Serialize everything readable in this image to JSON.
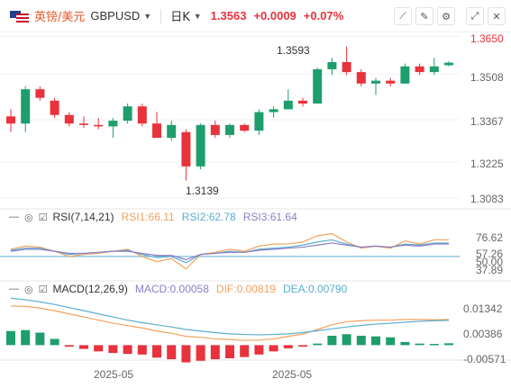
{
  "header": {
    "cn_name": "英镑/美元",
    "symbol": "GBPUSD",
    "period": "日K",
    "price": "1.3563",
    "change": "+0.0009",
    "change_pct": "+0.07%"
  },
  "colors": {
    "up": "#1e9e6c",
    "down": "#e8323c",
    "rsi1": "#f0a35e",
    "rsi2": "#5aaed0",
    "rsi3": "#8e7cc3",
    "dif": "#f0a35e",
    "dea": "#5aaed0"
  },
  "icons": [
    "flag-gbp-usd-icon",
    "chevron-down-icon",
    "line-tool-icon",
    "pencil-icon",
    "settings-icon",
    "expand-icon",
    "close-icon"
  ],
  "main_axis": {
    "labels": [
      "1.3650",
      "1.3508",
      "1.3367",
      "1.3225",
      "1.3083"
    ],
    "current": "1.3650"
  },
  "annotations": {
    "high": "1.3593",
    "low": "1.3139"
  },
  "rsi": {
    "name": "RSI(7,14,21)",
    "rsi1": "RSI1:66.11",
    "rsi2": "RSI2:62.78",
    "rsi3": "RSI3:61.64",
    "axis": [
      "76.62",
      "57.26",
      "50.00",
      "37.89"
    ]
  },
  "macd": {
    "name": "MACD(12,26,9)",
    "macd": "MACD:0.00058",
    "dif": "DIF:0.00819",
    "dea": "DEA:0.00790",
    "axis": [
      "0.01342",
      "0.00386",
      "-0.00571"
    ]
  },
  "x_labels": [
    "2025-05",
    "2025-05"
  ],
  "chart_data": {
    "type": "candlestick",
    "ylim": [
      1.3083,
      1.365
    ],
    "candles": [
      {
        "o": 1.3375,
        "h": 1.34,
        "l": 1.332,
        "c": 1.335
      },
      {
        "o": 1.335,
        "h": 1.348,
        "l": 1.332,
        "c": 1.347
      },
      {
        "o": 1.347,
        "h": 1.348,
        "l": 1.343,
        "c": 1.344
      },
      {
        "o": 1.343,
        "h": 1.344,
        "l": 1.337,
        "c": 1.338
      },
      {
        "o": 1.338,
        "h": 1.339,
        "l": 1.334,
        "c": 1.335
      },
      {
        "o": 1.335,
        "h": 1.3375,
        "l": 1.3335,
        "c": 1.3345
      },
      {
        "o": 1.3345,
        "h": 1.337,
        "l": 1.333,
        "c": 1.334
      },
      {
        "o": 1.334,
        "h": 1.337,
        "l": 1.33,
        "c": 1.336
      },
      {
        "o": 1.336,
        "h": 1.342,
        "l": 1.335,
        "c": 1.341
      },
      {
        "o": 1.341,
        "h": 1.342,
        "l": 1.334,
        "c": 1.335
      },
      {
        "o": 1.335,
        "h": 1.339,
        "l": 1.33,
        "c": 1.33
      },
      {
        "o": 1.33,
        "h": 1.336,
        "l": 1.329,
        "c": 1.3345
      },
      {
        "o": 1.332,
        "h": 1.333,
        "l": 1.315,
        "c": 1.32
      },
      {
        "o": 1.32,
        "h": 1.335,
        "l": 1.319,
        "c": 1.3345
      },
      {
        "o": 1.3345,
        "h": 1.336,
        "l": 1.33,
        "c": 1.331
      },
      {
        "o": 1.331,
        "h": 1.335,
        "l": 1.33,
        "c": 1.3345
      },
      {
        "o": 1.3345,
        "h": 1.335,
        "l": 1.332,
        "c": 1.3325
      },
      {
        "o": 1.3325,
        "h": 1.34,
        "l": 1.331,
        "c": 1.339
      },
      {
        "o": 1.339,
        "h": 1.341,
        "l": 1.337,
        "c": 1.34
      },
      {
        "o": 1.34,
        "h": 1.347,
        "l": 1.34,
        "c": 1.343
      },
      {
        "o": 1.343,
        "h": 1.344,
        "l": 1.341,
        "c": 1.342
      },
      {
        "o": 1.342,
        "h": 1.3545,
        "l": 1.342,
        "c": 1.354
      },
      {
        "o": 1.354,
        "h": 1.358,
        "l": 1.352,
        "c": 1.3565
      },
      {
        "o": 1.3565,
        "h": 1.362,
        "l": 1.352,
        "c": 1.353
      },
      {
        "o": 1.353,
        "h": 1.354,
        "l": 1.348,
        "c": 1.349
      },
      {
        "o": 1.349,
        "h": 1.351,
        "l": 1.345,
        "c": 1.35
      },
      {
        "o": 1.35,
        "h": 1.351,
        "l": 1.348,
        "c": 1.349
      },
      {
        "o": 1.349,
        "h": 1.356,
        "l": 1.349,
        "c": 1.355
      },
      {
        "o": 1.355,
        "h": 1.356,
        "l": 1.352,
        "c": 1.353
      },
      {
        "o": 1.353,
        "h": 1.358,
        "l": 1.352,
        "c": 1.355
      },
      {
        "o": 1.3554,
        "h": 1.3568,
        "l": 1.355,
        "c": 1.3563
      }
    ],
    "rsi1": [
      57,
      60,
      59,
      55,
      50,
      52,
      53,
      55,
      57,
      50,
      45,
      48,
      38,
      52,
      54,
      57,
      55,
      60,
      62,
      62,
      64,
      70,
      72,
      64,
      58,
      60,
      58,
      65,
      62,
      66,
      66
    ],
    "rsi2": [
      56,
      58,
      58,
      55,
      52,
      53,
      54,
      55,
      56,
      52,
      49,
      50,
      44,
      52,
      53,
      55,
      54,
      57,
      58,
      59,
      61,
      64,
      66,
      62,
      59,
      60,
      59,
      62,
      61,
      63,
      63
    ],
    "rsi3": [
      55,
      57,
      57,
      55,
      53,
      53,
      54,
      55,
      55,
      53,
      51,
      51,
      47,
      52,
      53,
      54,
      54,
      56,
      57,
      58,
      59,
      61,
      63,
      61,
      59,
      60,
      59,
      61,
      60,
      62,
      62
    ],
    "macd_hist": [
      0.0045,
      0.0048,
      0.004,
      0.002,
      -0.0005,
      -0.0012,
      -0.002,
      -0.0025,
      -0.0028,
      -0.003,
      -0.004,
      -0.0045,
      -0.0055,
      -0.005,
      -0.0045,
      -0.0042,
      -0.0038,
      -0.003,
      -0.002,
      -0.001,
      -0.0005,
      0.0005,
      0.003,
      0.0035,
      0.003,
      0.0028,
      0.0025,
      0.001,
      0.0005,
      0.0004,
      0.0006
    ],
    "dif": [
      0.0125,
      0.0124,
      0.0118,
      0.011,
      0.01,
      0.009,
      0.008,
      0.007,
      0.0062,
      0.0055,
      0.0045,
      0.0038,
      0.0028,
      0.0025,
      0.002,
      0.0018,
      0.0015,
      0.0016,
      0.002,
      0.0028,
      0.0035,
      0.005,
      0.0065,
      0.0075,
      0.0078,
      0.008,
      0.008,
      0.0082,
      0.0082,
      0.0081,
      0.0082
    ],
    "dea": [
      0.015,
      0.0145,
      0.0138,
      0.013,
      0.012,
      0.011,
      0.01,
      0.009,
      0.008,
      0.0072,
      0.0065,
      0.0058,
      0.005,
      0.0045,
      0.004,
      0.0036,
      0.0034,
      0.0033,
      0.0034,
      0.0036,
      0.004,
      0.0046,
      0.0052,
      0.0058,
      0.0063,
      0.0067,
      0.007,
      0.0073,
      0.0076,
      0.0078,
      0.0079
    ]
  }
}
